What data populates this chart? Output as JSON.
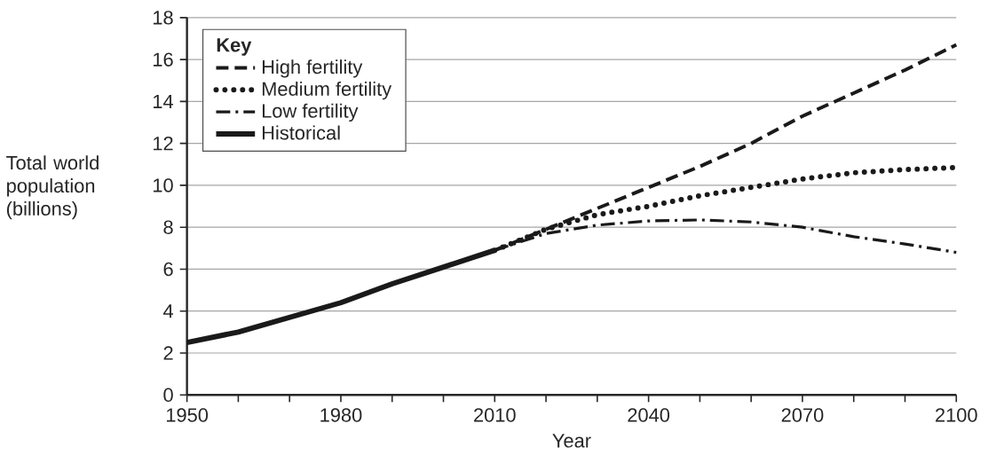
{
  "chart_data": {
    "type": "line",
    "xlabel": "Year",
    "ylabel": "Total world population (billions)",
    "legend_title": "Key",
    "legend": "top left",
    "grid": "y",
    "xlim": [
      1950,
      2100
    ],
    "ylim": [
      0,
      18
    ],
    "xticks": [
      1950,
      {
        "value": 1960,
        "label": null
      },
      {
        "value": 1970,
        "label": null
      },
      1980,
      {
        "value": 1990,
        "label": null
      },
      {
        "value": 2000,
        "label": null
      },
      2010,
      {
        "value": 2020,
        "label": null
      },
      {
        "value": 2030,
        "label": null
      },
      2040,
      {
        "value": 2050,
        "label": null
      },
      {
        "value": 2060,
        "label": null
      },
      2070,
      {
        "value": 2080,
        "label": null
      },
      {
        "value": 2090,
        "label": null
      },
      2100
    ],
    "yticks": [
      0,
      2,
      4,
      6,
      8,
      10,
      12,
      14,
      16,
      18
    ],
    "series": [
      {
        "name": "High fertility",
        "color": "#1a1a1a",
        "line_style": "dashed",
        "x": [
          2010,
          2020,
          2030,
          2040,
          2050,
          2060,
          2070,
          2080,
          2090,
          2100
        ],
        "values": [
          6.9,
          7.9,
          8.9,
          9.9,
          10.9,
          12.0,
          13.3,
          14.4,
          15.5,
          16.7
        ]
      },
      {
        "name": "Medium fertility",
        "color": "#1a1a1a",
        "line_style": "dotted",
        "x": [
          2010,
          2020,
          2030,
          2040,
          2050,
          2060,
          2070,
          2080,
          2090,
          2100
        ],
        "values": [
          6.9,
          7.9,
          8.6,
          9.0,
          9.5,
          9.9,
          10.3,
          10.6,
          10.75,
          10.85
        ]
      },
      {
        "name": "Low fertility",
        "color": "#1a1a1a",
        "line_style": "dashdot",
        "x": [
          2010,
          2020,
          2030,
          2040,
          2050,
          2060,
          2070,
          2080,
          2090,
          2100
        ],
        "values": [
          6.9,
          7.7,
          8.1,
          8.3,
          8.35,
          8.25,
          8.0,
          7.55,
          7.2,
          6.8
        ]
      },
      {
        "name": "Historical",
        "color": "#1a1a1a",
        "line_style": "solid",
        "x": [
          1950,
          1960,
          1970,
          1980,
          1990,
          2000,
          2010
        ],
        "values": [
          2.5,
          3.0,
          3.7,
          4.4,
          5.3,
          6.1,
          6.9
        ]
      }
    ]
  }
}
